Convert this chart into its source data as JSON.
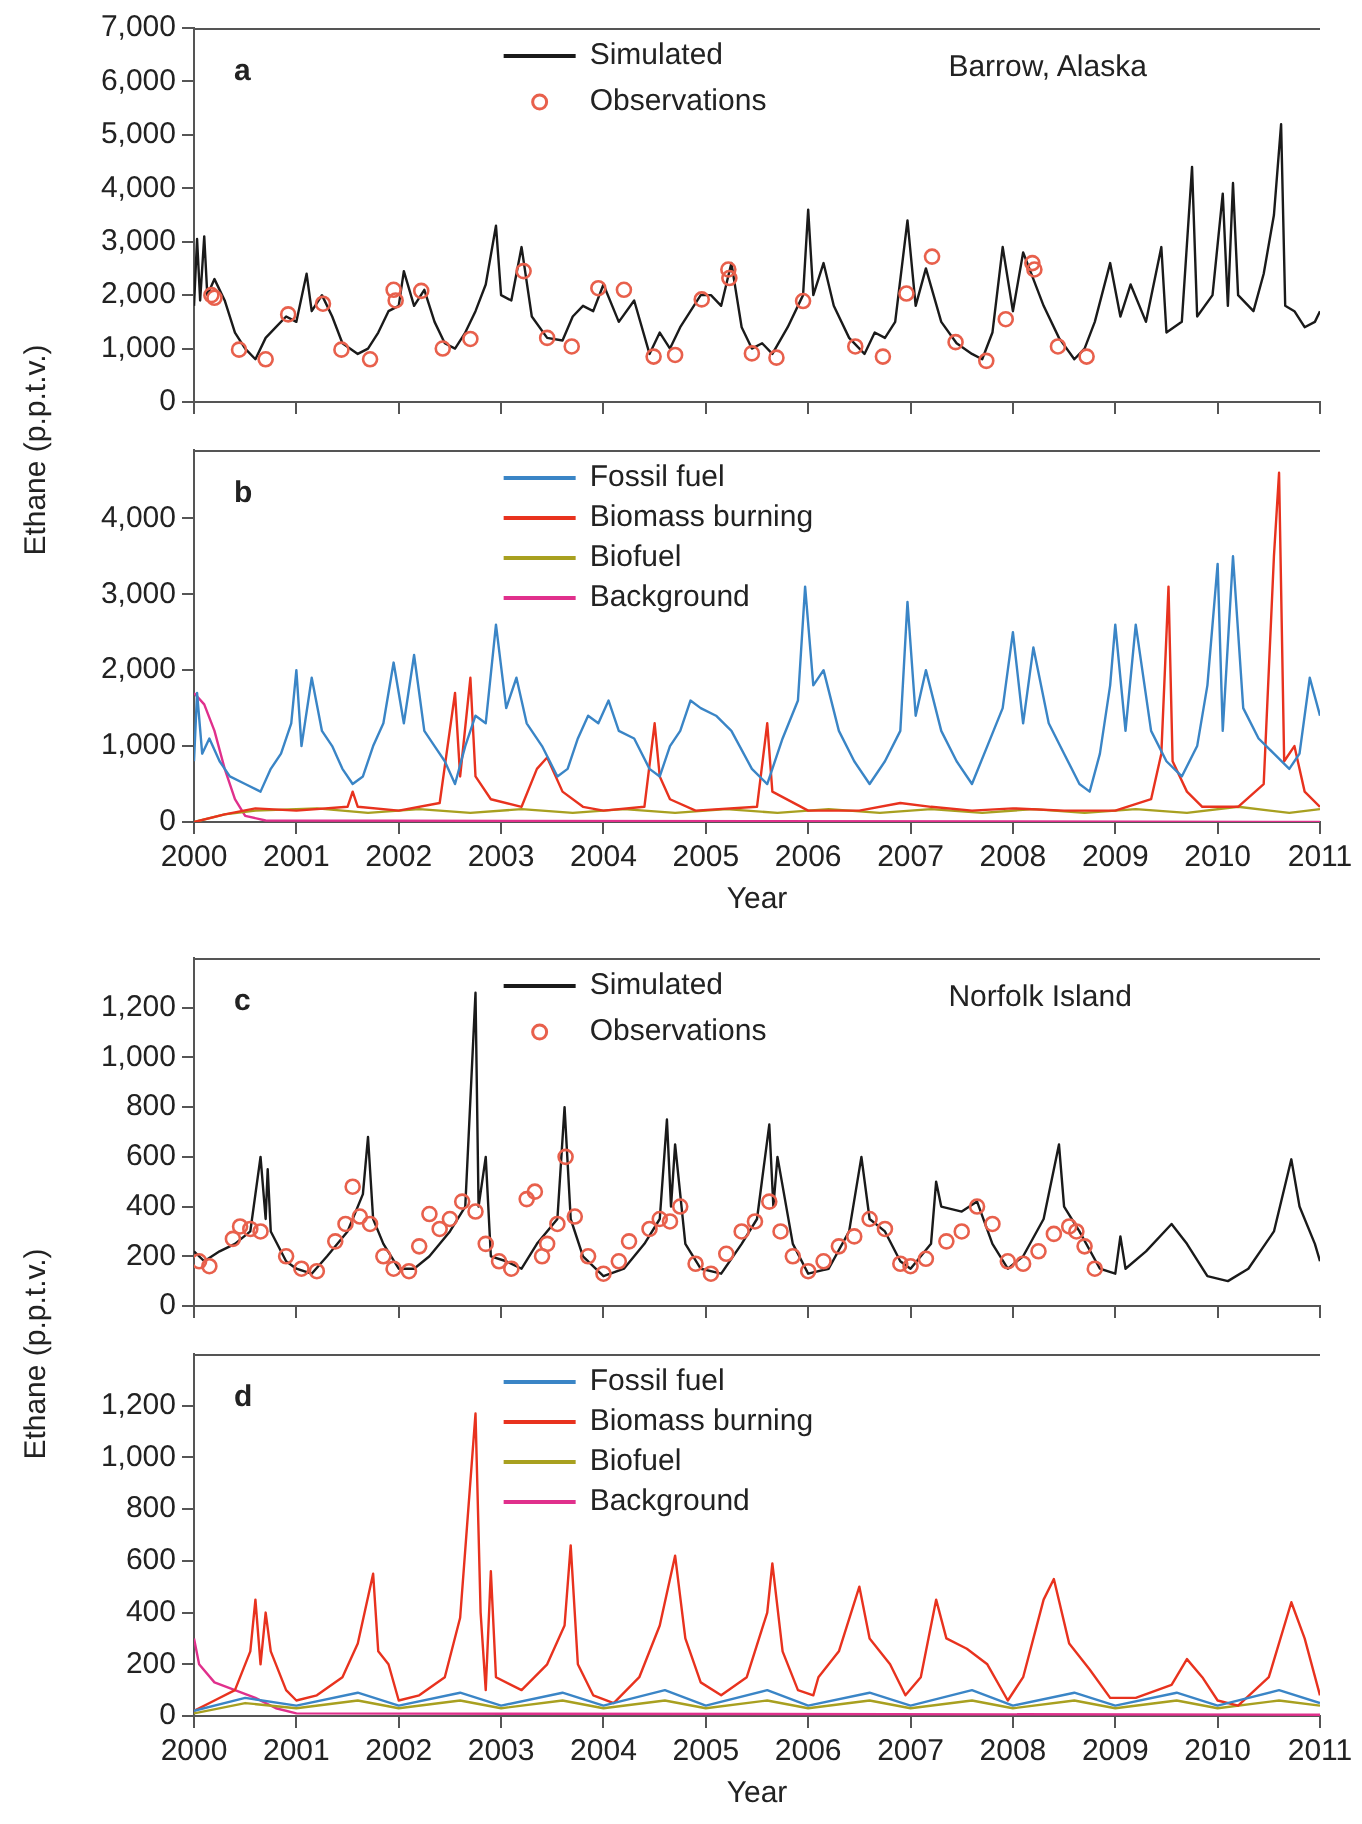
{
  "chart_data": [
    {
      "type": "line",
      "xlim": [
        2000,
        2011
      ],
      "xticks": [
        2000,
        2001,
        2002,
        2003,
        2004,
        2005,
        2006,
        2007,
        2008,
        2009,
        2010,
        2011
      ],
      "ylim": [
        0,
        7000
      ],
      "yticks": [
        0,
        {
          "value": 1000,
          "label": "1,000"
        },
        {
          "value": 2000,
          "label": "2,000"
        },
        {
          "value": 3000,
          "label": "3,000"
        },
        {
          "value": 4000,
          "label": "4,000"
        },
        {
          "value": 5000,
          "label": "5,000"
        },
        {
          "value": 6000,
          "label": "6,000"
        },
        {
          "value": 7000,
          "label": "7,000"
        }
      ],
      "tick_labels": "y",
      "legend": "top",
      "annotations": [
        "a",
        "Barrow, Alaska"
      ],
      "series": [
        {
          "name": "Simulated",
          "color": "#1a1a1a",
          "x": [
            2000.0,
            2000.03,
            2000.06,
            2000.1,
            2000.13,
            2000.2,
            2000.3,
            2000.4,
            2000.5,
            2000.6,
            2000.7,
            2000.8,
            2000.9,
            2001.0,
            2001.1,
            2001.15,
            2001.25,
            2001.35,
            2001.45,
            2001.6,
            2001.7,
            2001.8,
            2001.9,
            2002.0,
            2002.05,
            2002.15,
            2002.25,
            2002.35,
            2002.45,
            2002.55,
            2002.65,
            2002.75,
            2002.85,
            2002.95,
            2003.0,
            2003.1,
            2003.2,
            2003.3,
            2003.45,
            2003.6,
            2003.7,
            2003.8,
            2003.9,
            2004.0,
            2004.15,
            2004.3,
            2004.45,
            2004.55,
            2004.65,
            2004.75,
            2004.85,
            2004.95,
            2005.05,
            2005.15,
            2005.25,
            2005.35,
            2005.45,
            2005.55,
            2005.65,
            2005.8,
            2005.95,
            2006.0,
            2006.05,
            2006.15,
            2006.25,
            2006.4,
            2006.55,
            2006.65,
            2006.75,
            2006.85,
            2006.97,
            2007.05,
            2007.15,
            2007.3,
            2007.45,
            2007.6,
            2007.7,
            2007.8,
            2007.9,
            2008.0,
            2008.1,
            2008.2,
            2008.3,
            2008.45,
            2008.6,
            2008.7,
            2008.8,
            2008.95,
            2009.05,
            2009.15,
            2009.3,
            2009.45,
            2009.5,
            2009.65,
            2009.75,
            2009.8,
            2009.95,
            2010.05,
            2010.1,
            2010.15,
            2010.2,
            2010.35,
            2010.45,
            2010.55,
            2010.62,
            2010.66,
            2010.75,
            2010.85,
            2010.95,
            2011.0
          ],
          "values": [
            1800,
            3050,
            1900,
            3100,
            2000,
            2300,
            1900,
            1300,
            1000,
            800,
            1200,
            1400,
            1600,
            1500,
            2400,
            1700,
            2000,
            1600,
            1100,
            900,
            1000,
            1300,
            1700,
            1800,
            2450,
            1800,
            2100,
            1500,
            1100,
            1000,
            1300,
            1700,
            2200,
            3300,
            2000,
            1900,
            2900,
            1600,
            1200,
            1150,
            1600,
            1800,
            1700,
            2200,
            1500,
            1900,
            900,
            1300,
            1000,
            1400,
            1700,
            2000,
            2000,
            1800,
            2600,
            1400,
            1000,
            1100,
            900,
            1400,
            2000,
            3600,
            2000,
            2600,
            1800,
            1200,
            900,
            1300,
            1200,
            1500,
            3400,
            1800,
            2500,
            1500,
            1100,
            900,
            800,
            1300,
            2900,
            1700,
            2800,
            2300,
            1800,
            1200,
            800,
            1000,
            1500,
            2600,
            1600,
            2200,
            1500,
            2900,
            1300,
            1500,
            4400,
            1600,
            2000,
            3900,
            1800,
            4100,
            2000,
            1700,
            2400,
            3500,
            5200,
            1800,
            1700,
            1400,
            1500,
            1700
          ]
        },
        {
          "name": "Observations",
          "type": "scatter",
          "marker": "circle",
          "color": "#e8604c",
          "x": [
            2000.17,
            2000.2,
            2000.44,
            2000.7,
            2000.92,
            2001.26,
            2001.44,
            2001.72,
            2001.95,
            2001.97,
            2002.22,
            2002.43,
            2002.7,
            2003.22,
            2003.45,
            2003.69,
            2003.95,
            2004.2,
            2004.49,
            2004.7,
            2004.96,
            2005.22,
            2005.23,
            2005.45,
            2005.69,
            2005.95,
            2006.46,
            2006.73,
            2006.96,
            2007.21,
            2007.44,
            2007.74,
            2007.93,
            2008.19,
            2008.21,
            2008.44,
            2008.72
          ],
          "values": [
            2000,
            1950,
            980,
            800,
            1640,
            1840,
            980,
            800,
            2100,
            1900,
            2080,
            1000,
            1180,
            2450,
            1200,
            1040,
            2130,
            2100,
            850,
            880,
            1920,
            2480,
            2320,
            910,
            830,
            1890,
            1040,
            850,
            2030,
            2720,
            1120,
            770,
            1550,
            2600,
            2480,
            1040,
            850
          ]
        }
      ]
    },
    {
      "type": "line",
      "xlim": [
        2000,
        2011
      ],
      "xticks": [
        2000,
        2001,
        2002,
        2003,
        2004,
        2005,
        2006,
        2007,
        2008,
        2009,
        2010,
        2011
      ],
      "ylim": [
        0,
        4900
      ],
      "yticks": [
        0,
        {
          "value": 1000,
          "label": "1,000"
        },
        {
          "value": 2000,
          "label": "2,000"
        },
        {
          "value": 3000,
          "label": "3,000"
        },
        {
          "value": 4000,
          "label": "4,000"
        }
      ],
      "xlabel": "Year",
      "ylabel": "Ethane (p.p.t.v.)",
      "legend": "top",
      "annotations": [
        "b"
      ],
      "series": [
        {
          "name": "Fossil fuel",
          "color": "#3a85c6",
          "x": [
            2000.0,
            2000.03,
            2000.08,
            2000.15,
            2000.25,
            2000.35,
            2000.5,
            2000.65,
            2000.75,
            2000.85,
            2000.95,
            2001.0,
            2001.05,
            2001.15,
            2001.25,
            2001.35,
            2001.45,
            2001.55,
            2001.65,
            2001.75,
            2001.85,
            2001.95,
            2002.05,
            2002.15,
            2002.25,
            2002.35,
            2002.45,
            2002.55,
            2002.65,
            2002.75,
            2002.85,
            2002.95,
            2003.05,
            2003.15,
            2003.25,
            2003.4,
            2003.55,
            2003.65,
            2003.75,
            2003.85,
            2003.95,
            2004.05,
            2004.15,
            2004.3,
            2004.45,
            2004.55,
            2004.65,
            2004.75,
            2004.85,
            2004.95,
            2005.1,
            2005.25,
            2005.45,
            2005.6,
            2005.75,
            2005.9,
            2005.97,
            2006.05,
            2006.15,
            2006.3,
            2006.45,
            2006.6,
            2006.75,
            2006.9,
            2006.97,
            2007.05,
            2007.15,
            2007.3,
            2007.45,
            2007.6,
            2007.75,
            2007.9,
            2008.0,
            2008.1,
            2008.2,
            2008.35,
            2008.5,
            2008.65,
            2008.75,
            2008.85,
            2008.95,
            2009.0,
            2009.1,
            2009.2,
            2009.35,
            2009.5,
            2009.65,
            2009.8,
            2009.9,
            2010.0,
            2010.05,
            2010.15,
            2010.25,
            2010.4,
            2010.55,
            2010.7,
            2010.8,
            2010.9,
            2011.0
          ],
          "values": [
            800,
            1700,
            900,
            1100,
            800,
            600,
            500,
            400,
            700,
            900,
            1300,
            2000,
            1000,
            1900,
            1200,
            1000,
            700,
            500,
            600,
            1000,
            1300,
            2100,
            1300,
            2200,
            1200,
            1000,
            800,
            500,
            1000,
            1400,
            1300,
            2600,
            1500,
            1900,
            1300,
            1000,
            600,
            700,
            1100,
            1400,
            1300,
            1600,
            1200,
            1100,
            700,
            600,
            1000,
            1200,
            1600,
            1500,
            1400,
            1200,
            700,
            500,
            1100,
            1600,
            3100,
            1800,
            2000,
            1200,
            800,
            500,
            800,
            1200,
            2900,
            1400,
            2000,
            1200,
            800,
            500,
            1000,
            1500,
            2500,
            1300,
            2300,
            1300,
            900,
            500,
            400,
            900,
            1800,
            2600,
            1200,
            2600,
            1200,
            800,
            600,
            1000,
            1800,
            3400,
            1200,
            3500,
            1500,
            1100,
            900,
            700,
            900,
            1900,
            1400
          ]
        },
        {
          "name": "Biomass burning",
          "color": "#e8321e",
          "x": [
            2000.0,
            2000.3,
            2000.6,
            2001.0,
            2001.5,
            2001.55,
            2001.6,
            2002.0,
            2002.4,
            2002.55,
            2002.6,
            2002.7,
            2002.75,
            2002.9,
            2003.2,
            2003.35,
            2003.45,
            2003.6,
            2003.8,
            2004.0,
            2004.4,
            2004.5,
            2004.55,
            2004.65,
            2004.9,
            2005.5,
            2005.6,
            2005.65,
            2006.0,
            2006.5,
            2006.9,
            2007.2,
            2007.6,
            2008.0,
            2008.5,
            2009.0,
            2009.35,
            2009.45,
            2009.52,
            2009.56,
            2009.7,
            2009.85,
            2010.2,
            2010.45,
            2010.55,
            2010.6,
            2010.65,
            2010.75,
            2010.85,
            2011.0
          ],
          "values": [
            0,
            100,
            180,
            150,
            200,
            400,
            200,
            150,
            250,
            1700,
            600,
            1900,
            600,
            300,
            200,
            700,
            850,
            400,
            200,
            150,
            200,
            1300,
            600,
            300,
            150,
            200,
            1300,
            400,
            150,
            150,
            250,
            200,
            150,
            180,
            150,
            150,
            300,
            900,
            3100,
            800,
            400,
            200,
            200,
            500,
            3500,
            4600,
            800,
            1000,
            400,
            200
          ]
        },
        {
          "name": "Biofuel",
          "color": "#a8a020",
          "x": [
            2000.0,
            2000.3,
            2000.6,
            2001.2,
            2001.7,
            2002.2,
            2002.7,
            2003.2,
            2003.7,
            2004.2,
            2004.7,
            2005.2,
            2005.7,
            2006.2,
            2006.7,
            2007.2,
            2007.7,
            2008.2,
            2008.7,
            2009.2,
            2009.7,
            2010.2,
            2010.7,
            2011.0
          ],
          "values": [
            0,
            100,
            150,
            180,
            120,
            170,
            120,
            170,
            120,
            170,
            120,
            170,
            120,
            170,
            120,
            170,
            120,
            170,
            120,
            170,
            120,
            200,
            120,
            170
          ]
        },
        {
          "name": "Background",
          "color": "#e0308c",
          "x": [
            2000.0,
            2000.1,
            2000.2,
            2000.3,
            2000.4,
            2000.5,
            2000.7,
            2011.0
          ],
          "values": [
            1700,
            1550,
            1200,
            700,
            300,
            80,
            20,
            0
          ]
        }
      ]
    },
    {
      "type": "line",
      "xlim": [
        2000,
        2011
      ],
      "xticks": [
        2000,
        2001,
        2002,
        2003,
        2004,
        2005,
        2006,
        2007,
        2008,
        2009,
        2010,
        2011
      ],
      "ylim": [
        0,
        1400
      ],
      "yticks": [
        0,
        200,
        400,
        600,
        800,
        {
          "value": 1000,
          "label": "1,000"
        },
        {
          "value": 1200,
          "label": "1,200"
        }
      ],
      "tick_labels": "y",
      "legend": "top",
      "annotations": [
        "c",
        "Norfolk Island"
      ],
      "series": [
        {
          "name": "Simulated",
          "color": "#1a1a1a",
          "x": [
            2000.0,
            2000.1,
            2000.25,
            2000.4,
            2000.55,
            2000.6,
            2000.65,
            2000.7,
            2000.72,
            2000.75,
            2000.9,
            2001.0,
            2001.15,
            2001.3,
            2001.5,
            2001.65,
            2001.7,
            2001.75,
            2001.85,
            2002.0,
            2002.15,
            2002.3,
            2002.5,
            2002.65,
            2002.75,
            2002.78,
            2002.85,
            2002.9,
            2003.05,
            2003.2,
            2003.35,
            2003.55,
            2003.62,
            2003.68,
            2003.8,
            2004.0,
            2004.2,
            2004.4,
            2004.55,
            2004.62,
            2004.66,
            2004.7,
            2004.8,
            2004.95,
            2005.15,
            2005.35,
            2005.5,
            2005.62,
            2005.66,
            2005.7,
            2005.85,
            2006.0,
            2006.2,
            2006.4,
            2006.52,
            2006.6,
            2006.75,
            2006.9,
            2007.0,
            2007.2,
            2007.25,
            2007.3,
            2007.5,
            2007.65,
            2007.8,
            2007.95,
            2008.1,
            2008.3,
            2008.45,
            2008.5,
            2008.65,
            2008.85,
            2009.0,
            2009.05,
            2009.1,
            2009.3,
            2009.55,
            2009.7,
            2009.9,
            2010.1,
            2010.3,
            2010.55,
            2010.72,
            2010.8,
            2010.95,
            2011.0
          ],
          "values": [
            220,
            180,
            220,
            250,
            300,
            450,
            600,
            350,
            550,
            300,
            180,
            150,
            130,
            200,
            300,
            450,
            680,
            350,
            250,
            150,
            150,
            200,
            300,
            400,
            1260,
            400,
            600,
            200,
            180,
            150,
            250,
            350,
            800,
            350,
            200,
            120,
            150,
            250,
            350,
            750,
            400,
            650,
            250,
            150,
            130,
            250,
            350,
            730,
            400,
            600,
            250,
            130,
            150,
            300,
            600,
            350,
            300,
            180,
            150,
            250,
            500,
            400,
            380,
            420,
            250,
            150,
            200,
            350,
            650,
            400,
            300,
            150,
            130,
            280,
            150,
            220,
            330,
            250,
            120,
            100,
            150,
            300,
            590,
            400,
            250,
            180
          ]
        },
        {
          "name": "Observations",
          "type": "scatter",
          "marker": "circle",
          "color": "#e8604c",
          "x": [
            2000.05,
            2000.15,
            2000.38,
            2000.45,
            2000.55,
            2000.65,
            2000.9,
            2001.05,
            2001.2,
            2001.38,
            2001.48,
            2001.55,
            2001.62,
            2001.72,
            2001.85,
            2001.95,
            2002.1,
            2002.2,
            2002.3,
            2002.4,
            2002.5,
            2002.62,
            2002.75,
            2002.85,
            2002.98,
            2003.1,
            2003.25,
            2003.33,
            2003.4,
            2003.45,
            2003.55,
            2003.63,
            2003.72,
            2003.85,
            2004.0,
            2004.15,
            2004.25,
            2004.45,
            2004.55,
            2004.65,
            2004.75,
            2004.9,
            2005.05,
            2005.2,
            2005.35,
            2005.48,
            2005.62,
            2005.73,
            2005.85,
            2006.0,
            2006.15,
            2006.3,
            2006.45,
            2006.6,
            2006.75,
            2006.9,
            2007.0,
            2007.15,
            2007.35,
            2007.5,
            2007.65,
            2007.8,
            2007.95,
            2008.1,
            2008.25,
            2008.4,
            2008.55,
            2008.62,
            2008.7,
            2008.8
          ],
          "values": [
            180,
            160,
            270,
            320,
            310,
            300,
            200,
            150,
            140,
            260,
            330,
            480,
            360,
            330,
            200,
            150,
            140,
            240,
            370,
            310,
            350,
            420,
            380,
            250,
            180,
            150,
            430,
            460,
            200,
            250,
            330,
            600,
            360,
            200,
            130,
            180,
            260,
            310,
            350,
            340,
            400,
            170,
            130,
            210,
            300,
            340,
            420,
            300,
            200,
            140,
            180,
            240,
            280,
            350,
            310,
            170,
            160,
            190,
            260,
            300,
            400,
            330,
            180,
            170,
            220,
            290,
            320,
            300,
            240,
            150
          ]
        }
      ]
    },
    {
      "type": "line",
      "xlim": [
        2000,
        2011
      ],
      "xticks": [
        2000,
        2001,
        2002,
        2003,
        2004,
        2005,
        2006,
        2007,
        2008,
        2009,
        2010,
        2011
      ],
      "ylim": [
        0,
        1400
      ],
      "yticks": [
        0,
        200,
        400,
        600,
        800,
        {
          "value": 1000,
          "label": "1,000"
        },
        {
          "value": 1200,
          "label": "1,200"
        }
      ],
      "xlabel": "Year",
      "ylabel": "Ethane (p.p.t.v.)",
      "legend": "top",
      "annotations": [
        "d"
      ],
      "series": [
        {
          "name": "Fossil fuel",
          "color": "#3a85c6",
          "x": [
            2000.0,
            2000.5,
            2001.0,
            2001.6,
            2002.0,
            2002.6,
            2003.0,
            2003.6,
            2004.0,
            2004.6,
            2005.0,
            2005.6,
            2006.0,
            2006.6,
            2007.0,
            2007.6,
            2008.0,
            2008.6,
            2009.0,
            2009.6,
            2010.0,
            2010.6,
            2011.0
          ],
          "values": [
            20,
            70,
            40,
            90,
            40,
            90,
            40,
            90,
            40,
            100,
            40,
            100,
            40,
            90,
            40,
            100,
            40,
            90,
            40,
            90,
            40,
            100,
            50
          ]
        },
        {
          "name": "Biomass burning",
          "color": "#e8321e",
          "x": [
            2000.0,
            2000.2,
            2000.4,
            2000.55,
            2000.6,
            2000.65,
            2000.7,
            2000.75,
            2000.9,
            2001.0,
            2001.2,
            2001.45,
            2001.6,
            2001.75,
            2001.8,
            2001.9,
            2002.0,
            2002.2,
            2002.45,
            2002.6,
            2002.75,
            2002.8,
            2002.85,
            2002.9,
            2002.95,
            2003.2,
            2003.45,
            2003.62,
            2003.68,
            2003.75,
            2003.9,
            2004.1,
            2004.35,
            2004.55,
            2004.7,
            2004.8,
            2004.95,
            2005.15,
            2005.4,
            2005.6,
            2005.65,
            2005.75,
            2005.9,
            2006.05,
            2006.1,
            2006.3,
            2006.5,
            2006.6,
            2006.8,
            2006.95,
            2007.1,
            2007.25,
            2007.35,
            2007.55,
            2007.75,
            2007.95,
            2008.1,
            2008.3,
            2008.4,
            2008.55,
            2008.75,
            2008.95,
            2009.2,
            2009.55,
            2009.7,
            2009.85,
            2010.0,
            2010.2,
            2010.5,
            2010.72,
            2010.85,
            2011.0
          ],
          "values": [
            20,
            60,
            100,
            250,
            450,
            200,
            400,
            250,
            100,
            60,
            80,
            150,
            280,
            550,
            250,
            200,
            60,
            80,
            150,
            380,
            1170,
            400,
            100,
            560,
            150,
            100,
            200,
            350,
            660,
            200,
            80,
            50,
            150,
            350,
            620,
            300,
            130,
            80,
            150,
            400,
            590,
            250,
            100,
            80,
            150,
            250,
            500,
            300,
            200,
            80,
            150,
            450,
            300,
            260,
            200,
            60,
            150,
            450,
            530,
            280,
            180,
            70,
            70,
            120,
            220,
            150,
            60,
            40,
            150,
            440,
            300,
            80
          ]
        },
        {
          "name": "Biofuel",
          "color": "#a8a020",
          "x": [
            2000.0,
            2000.5,
            2001.0,
            2001.6,
            2002.0,
            2002.6,
            2003.0,
            2003.6,
            2004.0,
            2004.6,
            2005.0,
            2005.6,
            2006.0,
            2006.6,
            2007.0,
            2007.6,
            2008.0,
            2008.6,
            2009.0,
            2009.6,
            2010.0,
            2010.6,
            2011.0
          ],
          "values": [
            10,
            50,
            30,
            60,
            30,
            60,
            30,
            60,
            30,
            60,
            30,
            60,
            30,
            60,
            30,
            60,
            30,
            60,
            30,
            60,
            30,
            60,
            40
          ]
        },
        {
          "name": "Background",
          "color": "#e0308c",
          "x": [
            2000.0,
            2000.05,
            2000.2,
            2000.4,
            2000.6,
            2000.8,
            2001.0,
            2011.0
          ],
          "values": [
            300,
            200,
            130,
            100,
            70,
            30,
            10,
            5
          ]
        }
      ]
    }
  ]
}
